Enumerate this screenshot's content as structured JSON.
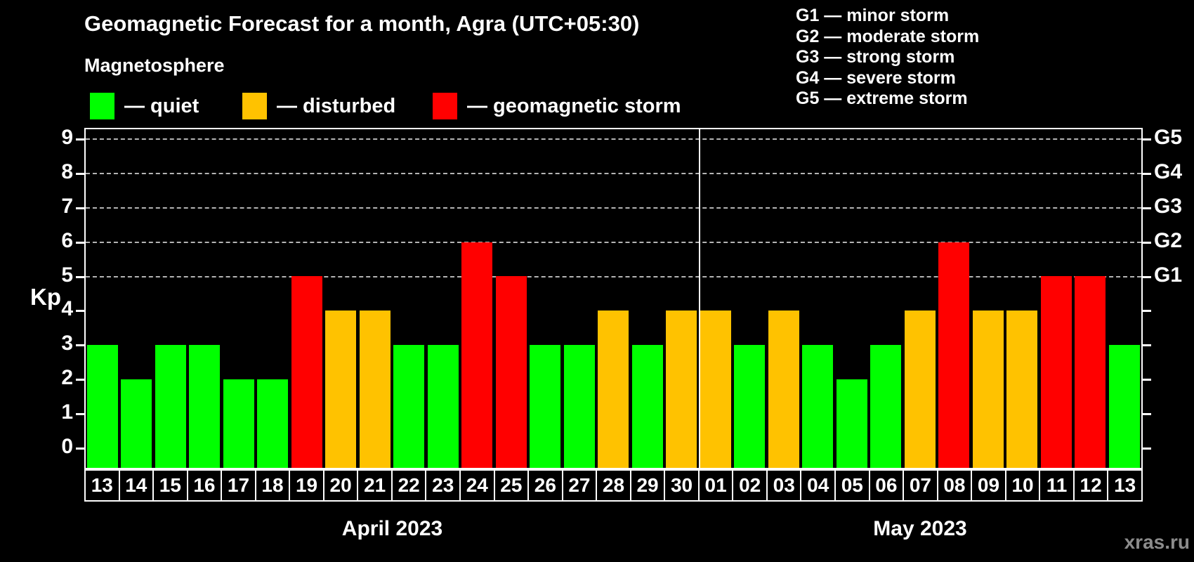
{
  "title": "Geomagnetic Forecast for a month, Agra (UTC+05:30)",
  "subtitle": "Magnetosphere",
  "legend": {
    "items": [
      {
        "key": "quiet",
        "label": "— quiet"
      },
      {
        "key": "disturbed",
        "label": "— disturbed"
      },
      {
        "key": "storm",
        "label": "— geomagnetic storm"
      }
    ]
  },
  "g_scale_legend": [
    "G1 — minor storm",
    "G2 — moderate storm",
    "G3 — strong storm",
    "G4 — severe storm",
    "G5 — extreme storm"
  ],
  "axes": {
    "y_label": "Kp",
    "y_ticks": [
      0,
      1,
      2,
      3,
      4,
      5,
      6,
      7,
      8,
      9
    ],
    "right_labels": [
      {
        "text": "G1",
        "value": 5
      },
      {
        "text": "G2",
        "value": 6
      },
      {
        "text": "G3",
        "value": 7
      },
      {
        "text": "G4",
        "value": 8
      },
      {
        "text": "G5",
        "value": 9
      }
    ]
  },
  "months": [
    {
      "label": "April 2023",
      "days": 18
    },
    {
      "label": "May 2023",
      "days": 13
    }
  ],
  "watermark": "xras.ru",
  "colors": {
    "quiet": "#00ff00",
    "disturbed": "#ffc200",
    "storm": "#ff0000",
    "grid": "#b4b4b4",
    "axis": "#ffffff",
    "watermark": "#8c8c8c",
    "background": "#000000"
  },
  "chart_data": {
    "type": "bar",
    "title": "Geomagnetic Forecast for a month, Agra (UTC+05:30)",
    "xlabel": "",
    "ylabel": "Kp",
    "ylim": [
      0,
      9.6
    ],
    "gridlines": [
      5,
      6,
      7,
      8,
      9
    ],
    "legend_position": "top-left",
    "categories": [
      "13",
      "14",
      "15",
      "16",
      "17",
      "18",
      "19",
      "20",
      "21",
      "22",
      "23",
      "24",
      "25",
      "26",
      "27",
      "28",
      "29",
      "30",
      "01",
      "02",
      "03",
      "04",
      "05",
      "06",
      "07",
      "08",
      "09",
      "10",
      "11",
      "12",
      "13"
    ],
    "values": [
      3,
      2,
      3,
      3,
      2,
      2,
      5,
      4,
      4,
      3,
      3,
      6,
      5,
      3,
      3,
      4,
      3,
      4,
      4,
      3,
      4,
      3,
      2,
      3,
      4,
      6,
      4,
      4,
      5,
      5,
      3
    ],
    "states": [
      "quiet",
      "quiet",
      "quiet",
      "quiet",
      "quiet",
      "quiet",
      "storm",
      "disturbed",
      "disturbed",
      "quiet",
      "quiet",
      "storm",
      "storm",
      "quiet",
      "quiet",
      "disturbed",
      "quiet",
      "disturbed",
      "disturbed",
      "quiet",
      "disturbed",
      "quiet",
      "quiet",
      "quiet",
      "disturbed",
      "storm",
      "disturbed",
      "disturbed",
      "storm",
      "storm",
      "quiet"
    ],
    "month_sections": [
      {
        "label": "April 2023",
        "categories_count": 18
      },
      {
        "label": "May 2023",
        "categories_count": 13
      }
    ]
  }
}
